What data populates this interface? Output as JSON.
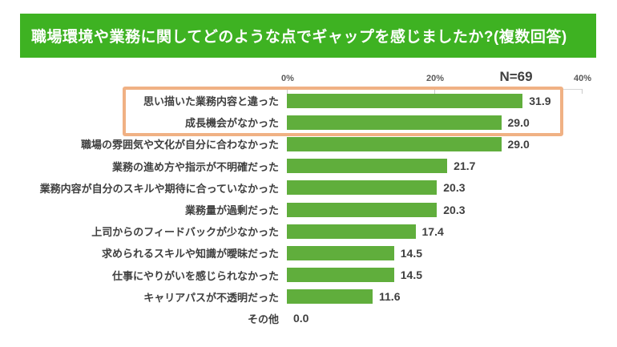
{
  "header": {
    "title": "職場環境や業務に関してどのような点でギャップを感じましたか?(複数回答)",
    "bg_color": "#3eb222",
    "text_color": "#ffffff"
  },
  "chart_data": {
    "type": "bar",
    "orientation": "horizontal",
    "title": "職場環境や業務に関してどのような点でギャップを感じましたか?(複数回答)",
    "sample_size_label": "N=69",
    "categories": [
      "思い描いた業務内容と違った",
      "成長機会がなかった",
      "職場の雰囲気や文化が自分に合わなかった",
      "業務の進め方や指示が不明確だった",
      "業務内容が自分のスキルや期待に合っていなかった",
      "業務量が過剰だった",
      "上司からのフィードバックが少なかった",
      "求められるスキルや知識が曖昧だった",
      "仕事にやりがいを感じられなかった",
      "キャリアパスが不透明だった",
      "その他"
    ],
    "values": [
      31.9,
      29.0,
      29.0,
      21.7,
      20.3,
      20.3,
      17.4,
      14.5,
      14.5,
      11.6,
      0.0
    ],
    "value_labels": [
      "31.9",
      "29.0",
      "29.0",
      "21.7",
      "20.3",
      "20.3",
      "17.4",
      "14.5",
      "14.5",
      "11.6",
      "0.0"
    ],
    "xlim": [
      0,
      40
    ],
    "x_tick_labels": [
      "0%",
      "20%",
      "40%"
    ],
    "x_tick_values": [
      0,
      20,
      40
    ],
    "xlabel": "",
    "ylabel": "",
    "grid": false,
    "legend": false,
    "bar_color": "#60ae3c",
    "label_color": "#3f3f3f",
    "axis_line_color": "#d6d6d6",
    "highlight_box": {
      "row_indices": [
        0,
        1
      ],
      "border_color": "#f0b184",
      "note": "orange frame around top two bars"
    }
  }
}
